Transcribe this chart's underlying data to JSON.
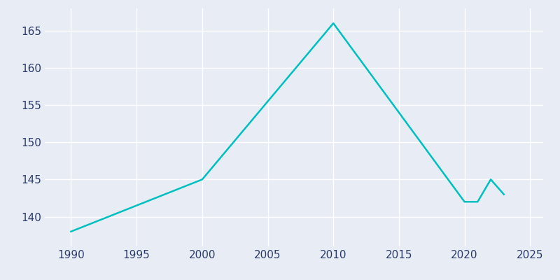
{
  "years": [
    1990,
    2000,
    2010,
    2020,
    2021,
    2022,
    2023
  ],
  "population": [
    138,
    145,
    166,
    142,
    142,
    145,
    143
  ],
  "line_color": "#00BFBF",
  "background_color": "#E8EDF5",
  "grid_color": "#FFFFFF",
  "tick_color": "#2A3A6A",
  "xlim": [
    1988,
    2026
  ],
  "ylim": [
    136,
    168
  ],
  "xticks": [
    1990,
    1995,
    2000,
    2005,
    2010,
    2015,
    2020,
    2025
  ],
  "yticks": [
    140,
    145,
    150,
    155,
    160,
    165
  ],
  "linewidth": 1.8,
  "tick_fontsize": 11
}
